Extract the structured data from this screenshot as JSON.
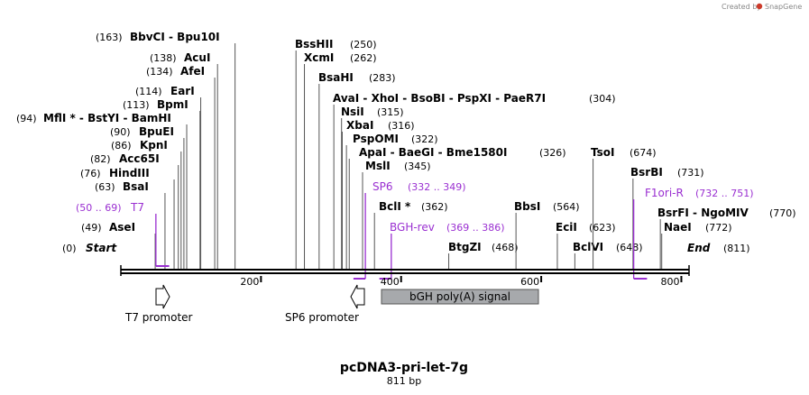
{
  "brand": {
    "prefix": "Created by",
    "name": "SnapGene"
  },
  "map": {
    "title": "pcDNA3-pri-let-7g",
    "length_label": "811 bp",
    "length": 811,
    "ticks": [
      200,
      400,
      600,
      800
    ]
  },
  "sites": [
    {
      "name": "Start",
      "pos": "(0)",
      "loc": 0,
      "special": true
    },
    {
      "name": "AseI",
      "pos": "(49)",
      "loc": 49
    },
    {
      "name": "BsaI",
      "pos": "(63)",
      "loc": 63
    },
    {
      "name": "HindIII",
      "pos": "(76)",
      "loc": 76
    },
    {
      "name": "Acc65I",
      "pos": "(82)",
      "loc": 82
    },
    {
      "name": "KpnI",
      "pos": "(86)",
      "loc": 86
    },
    {
      "name": "BpuEI",
      "pos": "(90)",
      "loc": 90
    },
    {
      "name": "MflI * - BstYI - BamHI",
      "pos": "(94)",
      "loc": 94,
      "pre": true
    },
    {
      "name": "BpmI",
      "pos": "(113)",
      "loc": 113
    },
    {
      "name": "EarI",
      "pos": "(114)",
      "loc": 114
    },
    {
      "name": "AfeI",
      "pos": "(134)",
      "loc": 134
    },
    {
      "name": "AcuI",
      "pos": "(138)",
      "loc": 138
    },
    {
      "name": "BbvCI - Bpu10I",
      "pos": "(163)",
      "loc": 163
    },
    {
      "name": "BssHII",
      "pos": "(250)",
      "loc": 250
    },
    {
      "name": "XcmI",
      "pos": "(262)",
      "loc": 262
    },
    {
      "name": "BsaHI",
      "pos": "(283)",
      "loc": 283
    },
    {
      "name": "AvaI - XhoI - BsoBI - PspXI - PaeR7I",
      "pos": "(304)",
      "loc": 304
    },
    {
      "name": "NsiI",
      "pos": "(315)",
      "loc": 315
    },
    {
      "name": "XbaI",
      "pos": "(316)",
      "loc": 316
    },
    {
      "name": "PspOMI",
      "pos": "(322)",
      "loc": 322
    },
    {
      "name": "ApaI - BaeGI - Bme1580I",
      "pos": "(326)",
      "loc": 326
    },
    {
      "name": "MslI",
      "pos": "(345)",
      "loc": 345
    },
    {
      "name": "BclI *",
      "pos": "(362)",
      "loc": 362
    },
    {
      "name": "BtgZI",
      "pos": "(468)",
      "loc": 468
    },
    {
      "name": "BbsI",
      "pos": "(564)",
      "loc": 564
    },
    {
      "name": "EciI",
      "pos": "(623)",
      "loc": 623
    },
    {
      "name": "BclVI",
      "pos": "(648)",
      "loc": 648
    },
    {
      "name": "TsoI",
      "pos": "(674)",
      "loc": 674
    },
    {
      "name": "BsrBI",
      "pos": "(731)",
      "loc": 731
    },
    {
      "name": "BsrFI - NgoMIV",
      "pos": "(770)",
      "loc": 770
    },
    {
      "name": "NaeI",
      "pos": "(772)",
      "loc": 772
    },
    {
      "name": "End",
      "pos": "(811)",
      "loc": 811,
      "special": true
    }
  ],
  "primers": [
    {
      "name": "T7",
      "range": "(50 .. 69)",
      "start": 50,
      "end": 69,
      "pre": true
    },
    {
      "name": "SP6",
      "range": "(332 .. 349)",
      "start": 332,
      "end": 349
    },
    {
      "name": "BGH-rev",
      "range": "(369 .. 386)",
      "start": 369,
      "end": 386
    },
    {
      "name": "F1ori-R",
      "range": "(732 .. 751)",
      "start": 732,
      "end": 751
    }
  ],
  "features": [
    {
      "name": "T7 promoter",
      "kind": "promoter",
      "direction": "forward"
    },
    {
      "name": "SP6 promoter",
      "kind": "promoter",
      "direction": "reverse"
    },
    {
      "name": "bGH poly(A) signal",
      "kind": "polyA"
    }
  ],
  "colors": {
    "primer": "#9a2fd1",
    "polyA_fill": "#a7a9ac",
    "backbone": "#000000"
  }
}
